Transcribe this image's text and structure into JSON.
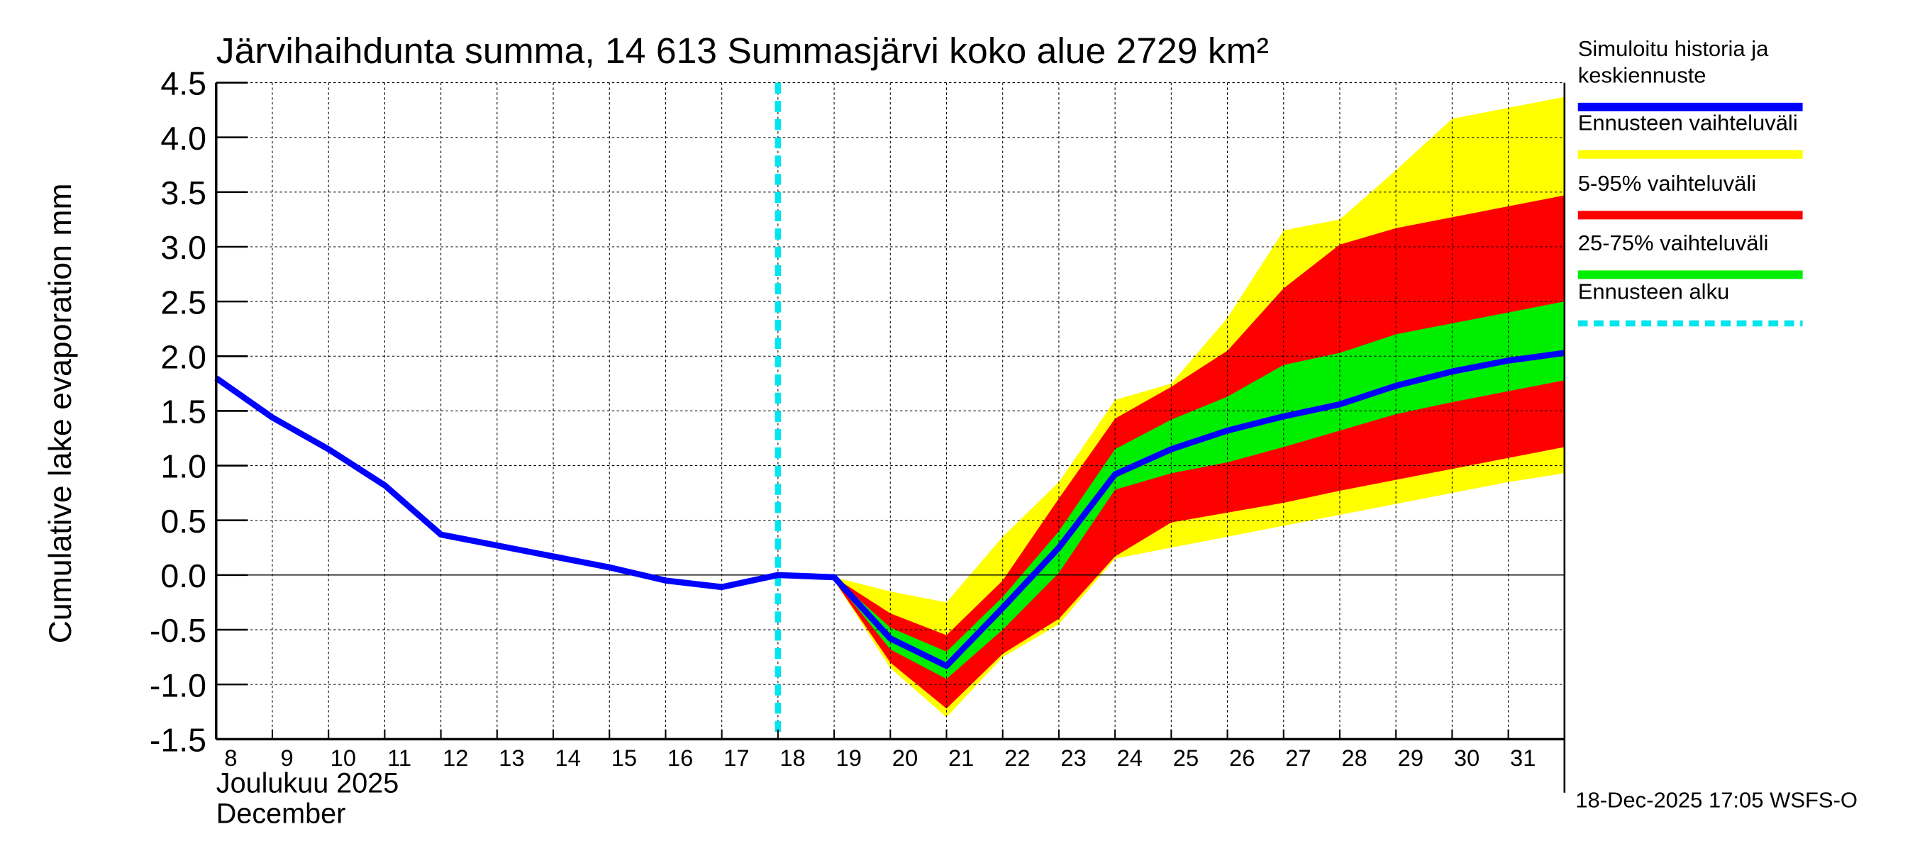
{
  "chart_data": {
    "type": "area",
    "title": "Järvihaihdunta summa, 14 613 Summasjärvi koko alue 2729 km²",
    "ylabel": "Cumulative lake evaporation   mm",
    "xlabel_lines": [
      "Joulukuu  2025",
      "December"
    ],
    "ylim": [
      -1.5,
      4.5
    ],
    "yticks": [
      "4.5",
      "4.0",
      "3.5",
      "3.0",
      "2.5",
      "2.0",
      "1.5",
      "1.0",
      "0.5",
      "0.0",
      "-0.5",
      "-1.0",
      "-1.5"
    ],
    "ytick_values": [
      4.5,
      4.0,
      3.5,
      3.0,
      2.5,
      2.0,
      1.5,
      1.0,
      0.5,
      0.0,
      -0.5,
      -1.0,
      -1.5
    ],
    "xlim_days": [
      8,
      32
    ],
    "xticks": [
      "8",
      "9",
      "10",
      "11",
      "12",
      "13",
      "14",
      "15",
      "16",
      "17",
      "18",
      "19",
      "20",
      "21",
      "22",
      "23",
      "24",
      "25",
      "26",
      "27",
      "28",
      "29",
      "30",
      "31"
    ],
    "grid": true,
    "forecast_start_day": 18,
    "series": [
      {
        "name": "Simuloitu historia ja keskiennuste",
        "color": "#0000ff",
        "x": [
          8,
          9,
          10,
          11,
          12,
          13,
          14,
          15,
          16,
          17,
          18,
          19,
          20,
          21,
          22,
          23,
          24,
          25,
          26,
          27,
          28,
          29,
          30,
          31,
          32
        ],
        "values": [
          1.8,
          1.44,
          1.15,
          0.82,
          0.37,
          0.27,
          0.17,
          0.07,
          -0.05,
          -0.11,
          0.0,
          -0.02,
          -0.58,
          -0.83,
          -0.3,
          0.25,
          0.92,
          1.15,
          1.32,
          1.45,
          1.56,
          1.73,
          1.86,
          1.96,
          2.03
        ]
      },
      {
        "name": "Ennusteen vaihteluväli",
        "color": "#ffff00",
        "x": [
          19,
          20,
          21,
          22,
          23,
          24,
          25,
          26,
          27,
          28,
          29,
          30,
          31,
          32
        ],
        "upper": [
          -0.02,
          -0.15,
          -0.25,
          0.35,
          0.85,
          1.6,
          1.75,
          2.35,
          3.15,
          3.25,
          3.7,
          4.17,
          4.27,
          4.37
        ],
        "lower": [
          -0.05,
          -0.85,
          -1.3,
          -0.75,
          -0.45,
          0.15,
          0.25,
          0.35,
          0.45,
          0.55,
          0.65,
          0.75,
          0.85,
          0.93
        ]
      },
      {
        "name": "5-95% vaihteluväli",
        "color": "#ff0000",
        "x": [
          19,
          20,
          21,
          22,
          23,
          24,
          25,
          26,
          27,
          28,
          29,
          30,
          31,
          32
        ],
        "upper": [
          -0.02,
          -0.35,
          -0.55,
          -0.05,
          0.7,
          1.43,
          1.72,
          2.05,
          2.62,
          3.02,
          3.17,
          3.27,
          3.37,
          3.47
        ],
        "lower": [
          -0.05,
          -0.8,
          -1.22,
          -0.72,
          -0.4,
          0.17,
          0.48,
          0.57,
          0.66,
          0.77,
          0.87,
          0.97,
          1.07,
          1.17
        ]
      },
      {
        "name": "25-75% vaihteluväli",
        "color": "#00ee00",
        "x": [
          19,
          20,
          21,
          22,
          23,
          24,
          25,
          26,
          27,
          28,
          29,
          30,
          31,
          32
        ],
        "upper": [
          -0.02,
          -0.48,
          -0.7,
          -0.2,
          0.4,
          1.15,
          1.42,
          1.63,
          1.92,
          2.03,
          2.2,
          2.3,
          2.4,
          2.5
        ],
        "lower": [
          -0.04,
          -0.68,
          -0.95,
          -0.5,
          0.02,
          0.78,
          0.93,
          1.03,
          1.17,
          1.32,
          1.47,
          1.58,
          1.68,
          1.78
        ]
      },
      {
        "name": "Ennusteen alku",
        "color": "#00e5ee"
      }
    ],
    "legend_placement": "right"
  },
  "legend": {
    "items": [
      {
        "label_lines": [
          "Simuloitu historia ja",
          "keskiennuste"
        ],
        "color": "#0000ff"
      },
      {
        "label_lines": [
          "Ennusteen vaihteluväli"
        ],
        "color": "#ffff00"
      },
      {
        "label_lines": [
          "5-95% vaihteluväli"
        ],
        "color": "#ff0000"
      },
      {
        "label_lines": [
          "25-75% vaihteluväli"
        ],
        "color": "#00ee00"
      },
      {
        "label_lines": [
          "Ennusteen alku"
        ],
        "color": "#00e5ee"
      }
    ]
  },
  "footer": {
    "timestamp": "18-Dec-2025 17:05 WSFS-O"
  }
}
